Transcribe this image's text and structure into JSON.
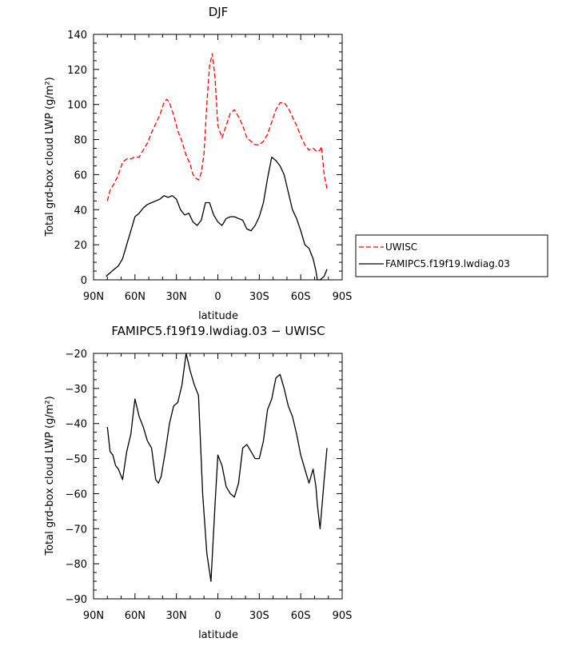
{
  "chart_data": [
    {
      "type": "line",
      "title": "DJF",
      "xlabel": "latitude",
      "ylabel": "Total grd-box cloud LWP (g/m²)",
      "xlim": [
        -90,
        90
      ],
      "ylim": [
        0,
        140
      ],
      "xticks": [
        -90,
        -60,
        -30,
        0,
        30,
        60,
        90
      ],
      "xtick_labels": [
        "90N",
        "60N",
        "30N",
        "0",
        "30S",
        "60S",
        "90S"
      ],
      "yticks": [
        0,
        20,
        40,
        60,
        80,
        100,
        120,
        140
      ],
      "ytick_labels": [
        "0",
        "20",
        "40",
        "60",
        "80",
        "100",
        "120",
        "140"
      ],
      "legend": {
        "placement": "outside-right"
      },
      "series": [
        {
          "name": "UWISC",
          "color": "#ff0000",
          "dash": "dashed",
          "x": [
            -80,
            -78,
            -75,
            -72,
            -69,
            -66,
            -63,
            -60,
            -57,
            -54,
            -51,
            -48,
            -45,
            -42,
            -39,
            -37,
            -35,
            -32,
            -29,
            -26,
            -23,
            -20,
            -18,
            -16,
            -14,
            -12,
            -10,
            -8,
            -6,
            -4,
            -2,
            0,
            3,
            6,
            9,
            12,
            15,
            18,
            21,
            24,
            27,
            30,
            33,
            36,
            39,
            42,
            45,
            48,
            51,
            54,
            57,
            60,
            63,
            66,
            69,
            72,
            74,
            75,
            77,
            79
          ],
          "y": [
            45,
            51,
            55,
            60,
            67,
            69,
            69,
            70,
            70,
            74,
            78,
            84,
            89,
            94,
            101,
            103,
            101,
            94,
            85,
            79,
            71,
            66,
            60,
            58,
            57,
            61,
            72,
            100,
            122,
            129,
            115,
            88,
            81,
            88,
            95,
            97,
            93,
            88,
            81,
            79,
            77,
            77,
            79,
            83,
            90,
            97,
            101,
            101,
            98,
            93,
            88,
            82,
            77,
            74,
            75,
            73,
            74,
            76,
            60,
            52
          ]
        },
        {
          "name": "FAMIPC5.f19f19.lwdiag.03",
          "color": "#000000",
          "dash": "solid",
          "x": [
            -81,
            -78,
            -75,
            -72,
            -69,
            -66,
            -63,
            -60,
            -57,
            -54,
            -51,
            -48,
            -45,
            -42,
            -39,
            -36,
            -33,
            -30,
            -27,
            -24,
            -21,
            -18,
            -15,
            -12,
            -9,
            -6,
            -3,
            0,
            3,
            6,
            9,
            12,
            15,
            18,
            21,
            24,
            27,
            30,
            33,
            36,
            39,
            42,
            45,
            48,
            51,
            54,
            57,
            60,
            63,
            66,
            69,
            71,
            72,
            74,
            77,
            79
          ],
          "y": [
            2,
            4,
            6,
            8,
            12,
            20,
            28,
            36,
            38,
            41,
            43,
            44,
            45,
            46,
            48,
            47,
            48,
            46,
            40,
            37,
            38,
            33,
            31,
            34,
            44,
            44,
            37,
            33,
            31,
            35,
            36,
            36,
            35,
            34,
            29,
            28,
            31,
            36,
            44,
            58,
            70,
            68,
            65,
            60,
            50,
            40,
            35,
            28,
            20,
            18,
            12,
            5,
            0,
            0,
            2,
            6
          ]
        }
      ]
    },
    {
      "type": "line",
      "title": "FAMIPC5.f19f19.lwdiag.03 − UWISC",
      "xlabel": "latitude",
      "ylabel": "Total grd-box cloud LWP (g/m²)",
      "xlim": [
        -90,
        90
      ],
      "ylim": [
        -90,
        -20
      ],
      "xticks": [
        -90,
        -60,
        -30,
        0,
        30,
        60,
        90
      ],
      "xtick_labels": [
        "90N",
        "60N",
        "30N",
        "0",
        "30S",
        "60S",
        "90S"
      ],
      "yticks": [
        -90,
        -80,
        -70,
        -60,
        -50,
        -40,
        -30,
        -20
      ],
      "ytick_labels": [
        "−90",
        "−80",
        "−70",
        "−60",
        "−50",
        "−40",
        "−30",
        "−20"
      ],
      "series": [
        {
          "color": "#000000",
          "dash": "solid",
          "x": [
            -80,
            -78,
            -76,
            -74,
            -72,
            -69,
            -66,
            -63,
            -60,
            -57,
            -54,
            -51,
            -48,
            -45,
            -43,
            -41,
            -38,
            -35,
            -32,
            -29,
            -26,
            -23,
            -20,
            -17,
            -14,
            -11,
            -8,
            -5,
            -2,
            0,
            3,
            6,
            9,
            12,
            15,
            18,
            21,
            24,
            27,
            30,
            33,
            36,
            39,
            42,
            45,
            48,
            51,
            54,
            57,
            60,
            63,
            66,
            69,
            71,
            72,
            74,
            77,
            79
          ],
          "y": [
            -41,
            -48,
            -49,
            -52,
            -53,
            -56,
            -48,
            -43,
            -33,
            -38,
            -41,
            -45,
            -47,
            -56,
            -57,
            -55,
            -48,
            -40,
            -35,
            -34,
            -29,
            -20,
            -25,
            -29,
            -32,
            -60,
            -77,
            -85,
            -63,
            -49,
            -52,
            -58,
            -60,
            -61,
            -57,
            -47,
            -46,
            -48,
            -50,
            -50,
            -45,
            -36,
            -33,
            -27,
            -26,
            -30,
            -35,
            -38,
            -43,
            -49,
            -53,
            -57,
            -53,
            -58,
            -63,
            -70,
            -56,
            -47
          ]
        }
      ]
    }
  ]
}
